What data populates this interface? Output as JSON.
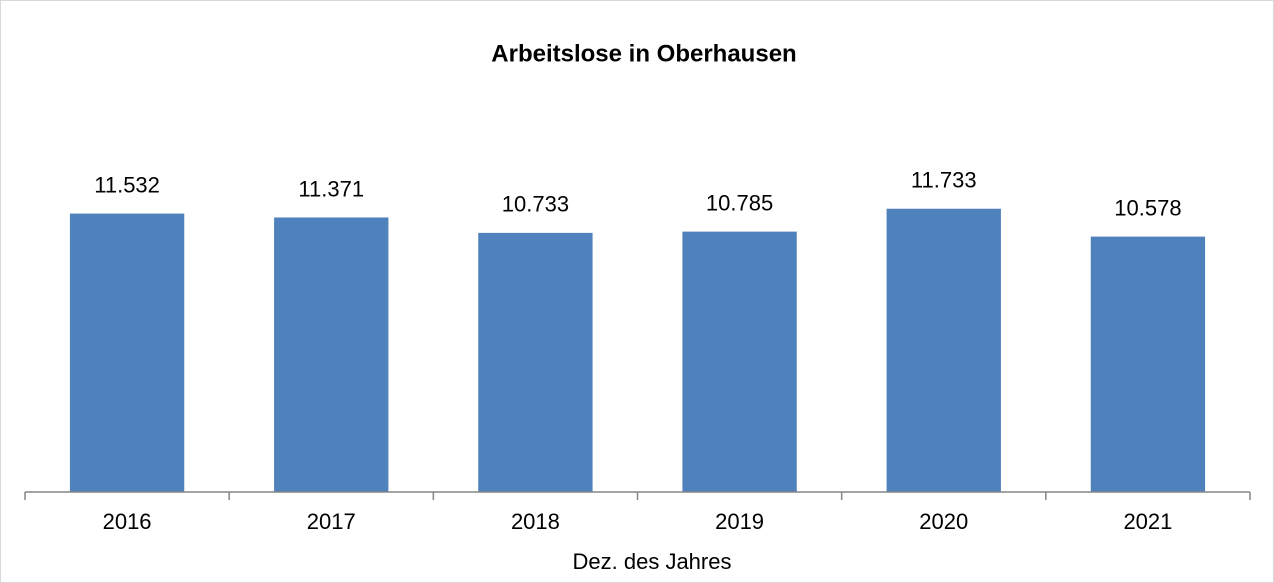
{
  "chart_data": {
    "type": "bar",
    "title": "Arbeitslose in Oberhausen",
    "x_label": "Dez. des Jahres",
    "categories": [
      "2016",
      "2017",
      "2018",
      "2019",
      "2020",
      "2021"
    ],
    "values": [
      11532,
      11371,
      10733,
      10785,
      11733,
      10578
    ],
    "value_labels": [
      "11.532",
      "11.371",
      "10.733",
      "10.785",
      "11.733",
      "10.578"
    ],
    "color": "#4f81bd",
    "ylim": [
      0,
      14000
    ]
  }
}
